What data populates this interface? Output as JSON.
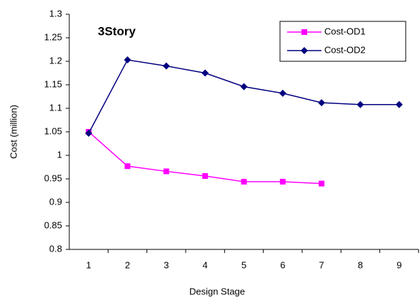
{
  "chart_data": {
    "type": "line",
    "title": "3Story",
    "x_label": "Design Stage",
    "y_label": "Cost (million)",
    "categories": [
      "1",
      "2",
      "3",
      "4",
      "5",
      "6",
      "7",
      "8",
      "9"
    ],
    "series": [
      {
        "name": "Cost-OD1",
        "color": "#ff00ff",
        "marker": "square",
        "values": [
          1.05,
          0.977,
          0.966,
          0.956,
          0.944,
          0.944,
          0.94,
          null,
          null
        ]
      },
      {
        "name": "Cost-OD2",
        "color": "#000080",
        "marker": "diamond",
        "values": [
          1.047,
          1.203,
          1.19,
          1.175,
          1.146,
          1.132,
          1.112,
          1.108,
          1.108
        ]
      }
    ],
    "ylim": [
      0.8,
      1.3
    ],
    "yticks": [
      0.8,
      0.85,
      0.9,
      0.95,
      1,
      1.05,
      1.1,
      1.15,
      1.2,
      1.25,
      1.3
    ],
    "grid": false,
    "legend": "top-right"
  }
}
